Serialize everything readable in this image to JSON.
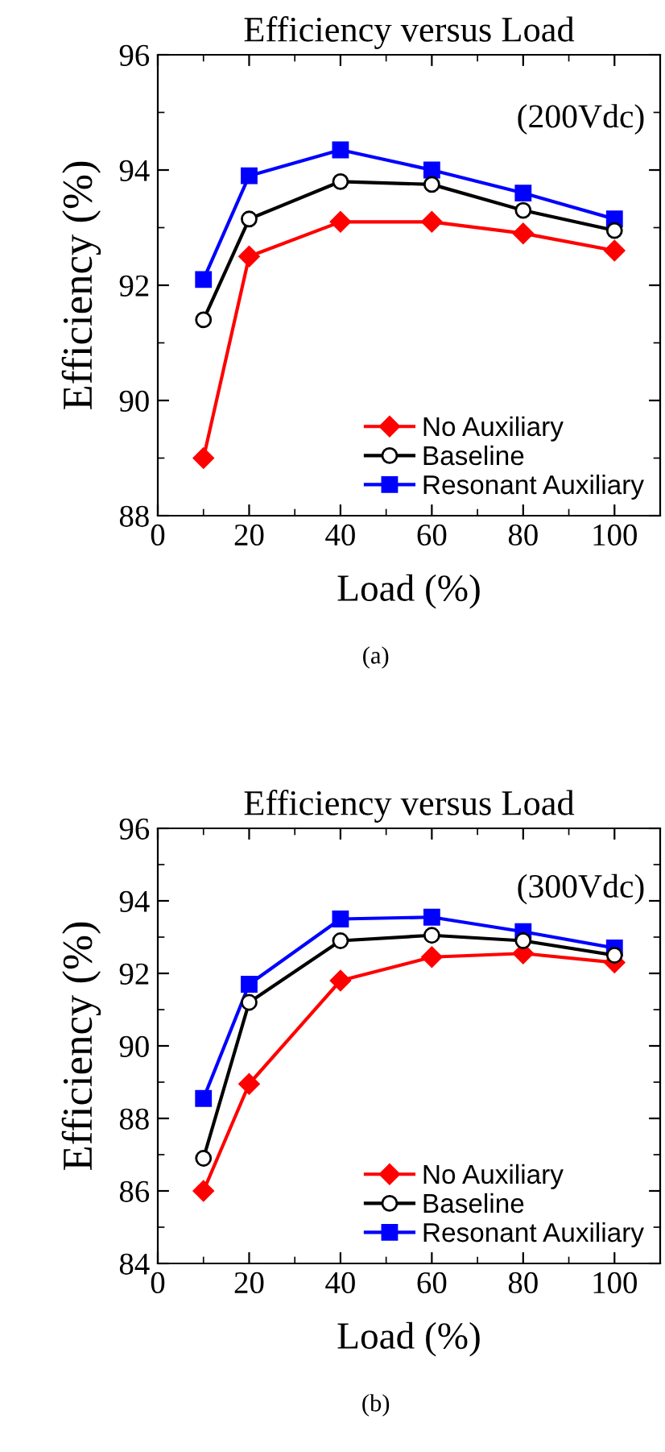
{
  "chart_data": [
    {
      "type": "line",
      "title": "Efficiency versus Load",
      "xlabel": "Load (%)",
      "ylabel": "Efficiency (%)",
      "annotations": [
        "(200Vdc)",
        "(a)"
      ],
      "x": [
        10,
        20,
        40,
        60,
        80,
        100
      ],
      "xlim": [
        0,
        110
      ],
      "xticks": [
        0,
        20,
        40,
        60,
        80,
        100
      ],
      "ylim": [
        88,
        96
      ],
      "yticks": [
        88,
        90,
        92,
        94,
        96
      ],
      "grid": false,
      "legend": "bottom right",
      "series": [
        {
          "name": "No Auxiliary",
          "color": "#ff0000",
          "marker": "diamond",
          "values": [
            89.0,
            92.5,
            93.1,
            93.1,
            92.9,
            92.6
          ]
        },
        {
          "name": "Baseline",
          "color": "#000000",
          "marker": "circle",
          "values": [
            91.4,
            93.15,
            93.8,
            93.75,
            93.3,
            92.95
          ]
        },
        {
          "name": "Resonant Auxiliary",
          "color": "#0000ff",
          "marker": "square",
          "values": [
            92.1,
            93.9,
            94.35,
            94.0,
            93.6,
            93.15
          ]
        }
      ]
    },
    {
      "type": "line",
      "title": "Efficiency versus Load",
      "xlabel": "Load (%)",
      "ylabel": "Efficiency (%)",
      "annotations": [
        "(300Vdc)",
        "(b)"
      ],
      "x": [
        10,
        20,
        40,
        60,
        80,
        100
      ],
      "xlim": [
        0,
        110
      ],
      "xticks": [
        0,
        20,
        40,
        60,
        80,
        100
      ],
      "ylim": [
        84,
        96
      ],
      "yticks": [
        84,
        86,
        88,
        90,
        92,
        94,
        96
      ],
      "grid": false,
      "legend": "bottom right",
      "series": [
        {
          "name": "No Auxiliary",
          "color": "#ff0000",
          "marker": "diamond",
          "values": [
            86.0,
            88.95,
            91.8,
            92.45,
            92.55,
            92.3
          ]
        },
        {
          "name": "Baseline",
          "color": "#000000",
          "marker": "circle",
          "values": [
            86.9,
            91.2,
            92.9,
            93.05,
            92.9,
            92.5
          ]
        },
        {
          "name": "Resonant Auxiliary",
          "color": "#0000ff",
          "marker": "square",
          "values": [
            88.55,
            91.7,
            93.5,
            93.55,
            93.15,
            92.7
          ]
        }
      ]
    }
  ]
}
